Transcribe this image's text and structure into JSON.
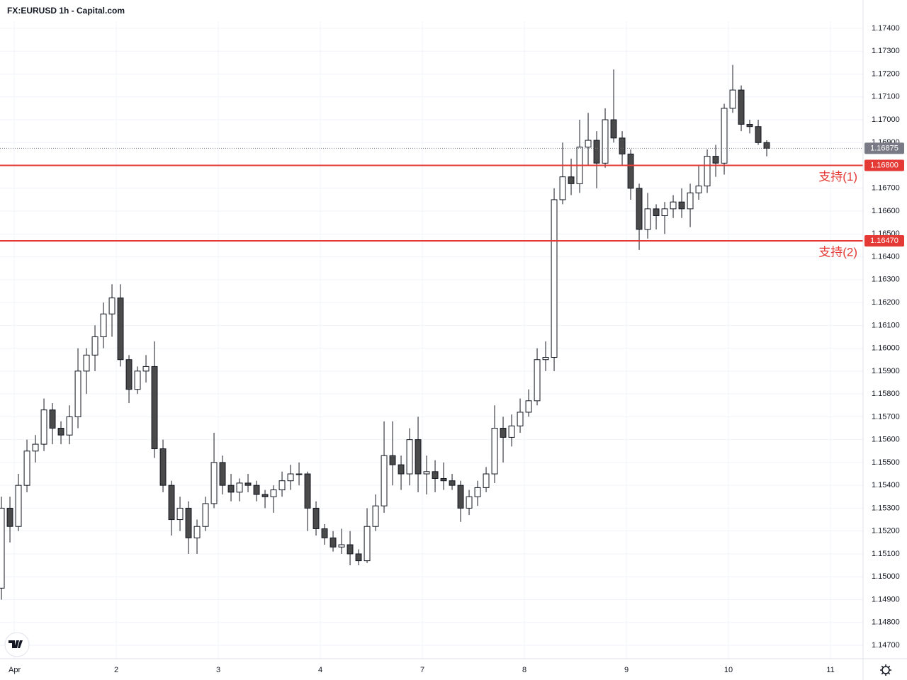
{
  "chart_data": {
    "type": "candlestick",
    "title": "FX:EURUSD 1h - Capital.com",
    "up_color": "#ffffff",
    "down_color": "#4a4a4a",
    "wick_color": "#131722",
    "grid": true,
    "open": [
      1.1495,
      1.153,
      1.1522,
      1.154,
      1.1555,
      1.1558,
      1.1573,
      1.1565,
      1.1562,
      1.157,
      1.159,
      1.1597,
      1.1605,
      1.1615,
      1.1622,
      1.1595,
      1.1582,
      1.159,
      1.1592,
      1.1556,
      1.154,
      1.1525,
      1.153,
      1.1517,
      1.1522,
      1.1532,
      1.155,
      1.154,
      1.1537,
      1.1541,
      1.154,
      1.1536,
      1.1535,
      1.1538,
      1.1542,
      1.1545,
      1.1545,
      1.153,
      1.1521,
      1.1517,
      1.1513,
      1.1514,
      1.151,
      1.1507,
      1.1522,
      1.1531,
      1.1553,
      1.1549,
      1.1545,
      1.156,
      1.1545,
      1.1546,
      1.1543,
      1.1542,
      1.154,
      1.153,
      1.1535,
      1.1539,
      1.1545,
      1.1565,
      1.1561,
      1.1566,
      1.1572,
      1.1577,
      1.1595,
      1.1596,
      1.1665,
      1.1675,
      1.1672,
      1.1688,
      1.1691,
      1.1681,
      1.17,
      1.1692,
      1.1685,
      1.167,
      1.1652,
      1.1661,
      1.1658,
      1.1661,
      1.1664,
      1.1661,
      1.1668,
      1.1671,
      1.1684,
      1.1681,
      1.1705,
      1.1713,
      1.1698,
      1.1697,
      1.169
    ],
    "high": [
      1.1535,
      1.1535,
      1.1545,
      1.156,
      1.1562,
      1.1578,
      1.1576,
      1.1568,
      1.1575,
      1.16,
      1.16,
      1.161,
      1.162,
      1.1628,
      1.1628,
      1.1597,
      1.1592,
      1.1597,
      1.1603,
      1.156,
      1.1542,
      1.1535,
      1.1533,
      1.1525,
      1.1535,
      1.1563,
      1.1553,
      1.1545,
      1.1543,
      1.1545,
      1.1542,
      1.1538,
      1.154,
      1.1546,
      1.1549,
      1.155,
      1.1546,
      1.1533,
      1.1523,
      1.152,
      1.1521,
      1.152,
      1.1512,
      1.153,
      1.1536,
      1.1568,
      1.1568,
      1.1553,
      1.1565,
      1.157,
      1.1553,
      1.1551,
      1.155,
      1.1545,
      1.1542,
      1.1538,
      1.1542,
      1.1548,
      1.1575,
      1.157,
      1.1571,
      1.1578,
      1.1582,
      1.16,
      1.1603,
      1.167,
      1.169,
      1.1683,
      1.17,
      1.1703,
      1.1695,
      1.1705,
      1.1722,
      1.1695,
      1.1687,
      1.1672,
      1.1668,
      1.1663,
      1.1664,
      1.1667,
      1.167,
      1.1672,
      1.168,
      1.1687,
      1.1689,
      1.1707,
      1.1724,
      1.1715,
      1.17,
      1.17,
      1.1691
    ],
    "low": [
      1.149,
      1.1515,
      1.152,
      1.1537,
      1.155,
      1.1555,
      1.1558,
      1.1558,
      1.1558,
      1.1565,
      1.158,
      1.159,
      1.16,
      1.1605,
      1.1592,
      1.1576,
      1.158,
      1.1585,
      1.1552,
      1.1537,
      1.1518,
      1.152,
      1.151,
      1.151,
      1.152,
      1.153,
      1.1536,
      1.1533,
      1.1533,
      1.1537,
      1.1533,
      1.153,
      1.1528,
      1.1535,
      1.1538,
      1.154,
      1.152,
      1.1518,
      1.1514,
      1.1511,
      1.151,
      1.1505,
      1.1505,
      1.1506,
      1.152,
      1.1528,
      1.154,
      1.1538,
      1.154,
      1.1537,
      1.1536,
      1.1537,
      1.1538,
      1.1538,
      1.1524,
      1.1527,
      1.1531,
      1.1537,
      1.1541,
      1.155,
      1.1557,
      1.1563,
      1.157,
      1.1575,
      1.159,
      1.159,
      1.1663,
      1.1667,
      1.1668,
      1.168,
      1.167,
      1.1679,
      1.169,
      1.168,
      1.1665,
      1.1643,
      1.1648,
      1.1652,
      1.165,
      1.1657,
      1.1657,
      1.1653,
      1.1665,
      1.1668,
      1.1675,
      1.1676,
      1.1703,
      1.1695,
      1.1694,
      1.1689,
      1.1684
    ],
    "close": [
      1.153,
      1.1522,
      1.154,
      1.1555,
      1.1558,
      1.1573,
      1.1565,
      1.1562,
      1.157,
      1.159,
      1.1597,
      1.1605,
      1.1615,
      1.1622,
      1.1595,
      1.1582,
      1.159,
      1.1592,
      1.1556,
      1.154,
      1.1525,
      1.153,
      1.1517,
      1.1522,
      1.1532,
      1.155,
      1.154,
      1.1537,
      1.1541,
      1.154,
      1.1536,
      1.1535,
      1.1538,
      1.1542,
      1.1545,
      1.1545,
      1.153,
      1.1521,
      1.1517,
      1.1513,
      1.1514,
      1.151,
      1.1507,
      1.1522,
      1.1531,
      1.1553,
      1.1549,
      1.1545,
      1.156,
      1.1545,
      1.1546,
      1.1543,
      1.1542,
      1.154,
      1.153,
      1.1535,
      1.1539,
      1.1545,
      1.1565,
      1.1561,
      1.1566,
      1.1572,
      1.1577,
      1.1595,
      1.1596,
      1.1665,
      1.1675,
      1.1672,
      1.1688,
      1.1691,
      1.1681,
      1.17,
      1.1692,
      1.1685,
      1.167,
      1.1652,
      1.1661,
      1.1658,
      1.1661,
      1.1664,
      1.1661,
      1.1668,
      1.1671,
      1.1684,
      1.1681,
      1.1705,
      1.1713,
      1.1698,
      1.1697,
      1.169,
      1.16875
    ],
    "xlim": [
      0.33,
      101.83
    ],
    "xticks": [
      {
        "value": 2,
        "label": "Apr"
      },
      {
        "value": 14,
        "label": "2"
      },
      {
        "value": 26,
        "label": "3"
      },
      {
        "value": 38,
        "label": "4"
      },
      {
        "value": 50,
        "label": "7"
      },
      {
        "value": 62,
        "label": "8"
      },
      {
        "value": 74,
        "label": "9"
      },
      {
        "value": 86,
        "label": "10"
      },
      {
        "value": 98,
        "label": "11"
      }
    ],
    "ylim": [
      1.14641,
      1.17431
    ],
    "yticks": [
      {
        "value": 1.174,
        "label": "1.17400"
      },
      {
        "value": 1.173,
        "label": "1.17300"
      },
      {
        "value": 1.172,
        "label": "1.17200"
      },
      {
        "value": 1.171,
        "label": "1.17100"
      },
      {
        "value": 1.17,
        "label": "1.17000"
      },
      {
        "value": 1.169,
        "label": "1.16900"
      },
      {
        "value": 1.168,
        "label": "1.16800"
      },
      {
        "value": 1.167,
        "label": "1.16700"
      },
      {
        "value": 1.166,
        "label": "1.16600"
      },
      {
        "value": 1.165,
        "label": "1.16500"
      },
      {
        "value": 1.164,
        "label": "1.16400"
      },
      {
        "value": 1.163,
        "label": "1.16300"
      },
      {
        "value": 1.162,
        "label": "1.16200"
      },
      {
        "value": 1.161,
        "label": "1.16100"
      },
      {
        "value": 1.16,
        "label": "1.16000"
      },
      {
        "value": 1.159,
        "label": "1.15900"
      },
      {
        "value": 1.158,
        "label": "1.15800"
      },
      {
        "value": 1.157,
        "label": "1.15700"
      },
      {
        "value": 1.156,
        "label": "1.15600"
      },
      {
        "value": 1.155,
        "label": "1.15500"
      },
      {
        "value": 1.154,
        "label": "1.15400"
      },
      {
        "value": 1.153,
        "label": "1.15300"
      },
      {
        "value": 1.152,
        "label": "1.15200"
      },
      {
        "value": 1.151,
        "label": "1.15100"
      },
      {
        "value": 1.15,
        "label": "1.15000"
      },
      {
        "value": 1.149,
        "label": "1.14900"
      },
      {
        "value": 1.148,
        "label": "1.14800"
      },
      {
        "value": 1.147,
        "label": "1.14700"
      }
    ],
    "levels": [
      {
        "value": 1.168,
        "label": "1.16800",
        "name": "支持(1)",
        "color": "#e53935"
      },
      {
        "value": 1.1647,
        "label": "1.16470",
        "name": "支持(2)",
        "color": "#e53935"
      }
    ],
    "last_price": {
      "value": 1.16875,
      "label": "1.16875",
      "color": "#787b86"
    }
  }
}
